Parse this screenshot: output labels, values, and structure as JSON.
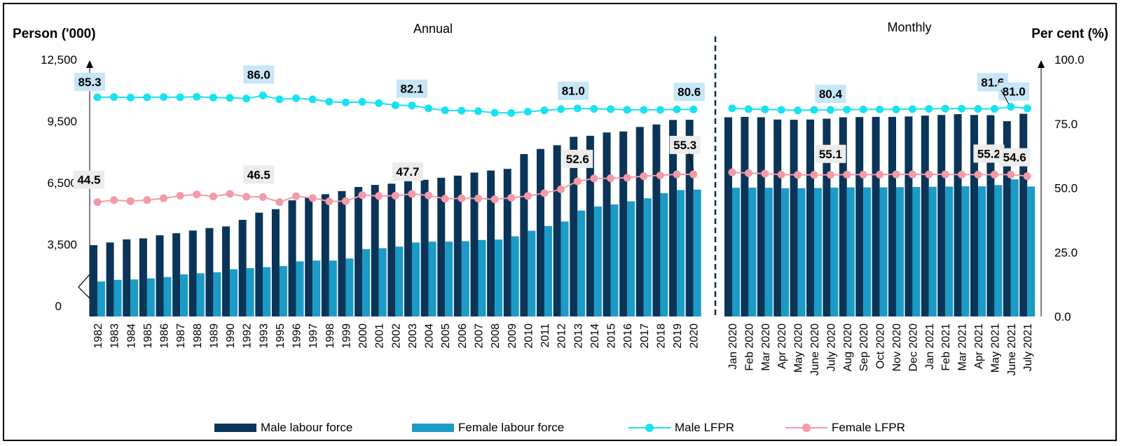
{
  "chart_data": {
    "type": "bar+line",
    "left_axis_title": "Person ('000)",
    "right_axis_title": "Per cent (%)",
    "panel_titles": {
      "annual": "Annual",
      "monthly": "Monthly"
    },
    "left_axis": {
      "ticks": [
        "0",
        "3,500",
        "6,500",
        "9,500",
        "12,500"
      ],
      "tick_values": [
        0,
        3500,
        6500,
        9500,
        12500
      ]
    },
    "right_axis": {
      "ticks": [
        "0.0",
        "25.0",
        "50.0",
        "75.0",
        "100.0"
      ],
      "tick_values": [
        0,
        25,
        50,
        75,
        100
      ]
    },
    "categories": [
      "1982",
      "1983",
      "1984",
      "1985",
      "1986",
      "1987",
      "1988",
      "1989",
      "1990",
      "1992",
      "1993",
      "1995",
      "1996",
      "1997",
      "1998",
      "1999",
      "2000",
      "2001",
      "2002",
      "2003",
      "2004",
      "2005",
      "2006",
      "2007",
      "2008",
      "2009",
      "2010",
      "2011",
      "2012",
      "2013",
      "2014",
      "2015",
      "2016",
      "2017",
      "2018",
      "2019",
      "2020",
      "Jan 2020",
      "Feb 2020",
      "Mar 2020",
      "Apr 2020",
      "May 2020",
      "June 2020",
      "July 2020",
      "Aug 2020",
      "Sep 2020",
      "Oct 2020",
      "Nov 2020",
      "Dec 2020",
      "Jan 2021",
      "Feb 2021",
      "Mar 2021",
      "Apr 2021",
      "May 2021",
      "June 2021",
      "July 2021"
    ],
    "annual_count": 37,
    "series": [
      {
        "name": "Male labour force",
        "kind": "bar",
        "axis": "left",
        "color": "#0b3558",
        "values": [
          3470,
          3600,
          3750,
          3800,
          3950,
          4050,
          4180,
          4300,
          4380,
          4700,
          5050,
          5220,
          5650,
          5780,
          5950,
          6100,
          6300,
          6400,
          6460,
          6580,
          6650,
          6750,
          6850,
          7000,
          7100,
          7180,
          7900,
          8150,
          8330,
          8740,
          8790,
          8950,
          9000,
          9220,
          9340,
          9560,
          9570,
          9690,
          9710,
          9690,
          9580,
          9570,
          9580,
          9620,
          9690,
          9700,
          9710,
          9710,
          9730,
          9770,
          9800,
          9840,
          9800,
          9790,
          9500,
          9860
        ]
      },
      {
        "name": "Female labour force",
        "kind": "bar",
        "axis": "left",
        "color": "#1b9bc7",
        "values": [
          1700,
          1780,
          1800,
          1850,
          1920,
          2050,
          2100,
          2150,
          2300,
          2350,
          2400,
          2450,
          2680,
          2720,
          2720,
          2820,
          3280,
          3320,
          3400,
          3600,
          3640,
          3640,
          3660,
          3720,
          3740,
          3900,
          4170,
          4400,
          4620,
          5150,
          5350,
          5450,
          5600,
          5750,
          6000,
          6150,
          6170,
          6260,
          6270,
          6260,
          6240,
          6240,
          6250,
          6270,
          6280,
          6280,
          6280,
          6290,
          6300,
          6310,
          6320,
          6330,
          6330,
          6390,
          6670,
          6320
        ]
      },
      {
        "name": "Male LFPR",
        "kind": "line",
        "axis": "right",
        "color": "#18e2f0",
        "values": [
          85.3,
          85.4,
          85.2,
          85.3,
          85.4,
          85.3,
          85.5,
          85.2,
          85.1,
          84.8,
          86.0,
          84.5,
          84.9,
          84.5,
          83.6,
          83.3,
          83.5,
          83.0,
          82.2,
          82.1,
          81.0,
          80.2,
          80.1,
          79.9,
          79.3,
          79.2,
          79.7,
          80.2,
          80.7,
          81.0,
          80.8,
          80.7,
          80.4,
          80.4,
          80.4,
          80.6,
          80.6,
          81.0,
          80.7,
          80.6,
          80.4,
          80.2,
          80.4,
          80.4,
          80.5,
          80.6,
          80.6,
          80.6,
          80.7,
          80.8,
          80.9,
          80.9,
          80.8,
          80.8,
          81.6,
          81.0
        ]
      },
      {
        "name": "Female LFPR",
        "kind": "line",
        "axis": "right",
        "color": "#f49aa6",
        "values": [
          44.5,
          45.3,
          44.9,
          45.3,
          46.0,
          47.0,
          47.5,
          46.7,
          47.7,
          46.6,
          46.5,
          44.5,
          46.8,
          46.1,
          44.8,
          44.9,
          47.2,
          46.9,
          47.0,
          47.7,
          47.1,
          45.8,
          46.0,
          45.9,
          45.6,
          46.2,
          46.9,
          48.0,
          49.5,
          52.6,
          53.7,
          53.8,
          54.0,
          54.6,
          54.9,
          55.3,
          55.3,
          56.1,
          55.8,
          55.6,
          55.2,
          55.1,
          55.1,
          55.1,
          55.2,
          55.2,
          55.2,
          55.3,
          55.3,
          55.3,
          55.3,
          55.2,
          55.2,
          55.2,
          55.2,
          54.6
        ]
      }
    ],
    "annotations": [
      {
        "series": "Male LFPR",
        "index": 0,
        "text": "85.3"
      },
      {
        "series": "Male LFPR",
        "index": 10,
        "text": "86.0"
      },
      {
        "series": "Male LFPR",
        "index": 19,
        "text": "82.1"
      },
      {
        "series": "Male LFPR",
        "index": 29,
        "text": "81.0"
      },
      {
        "series": "Male LFPR",
        "index": 36,
        "text": "80.6"
      },
      {
        "series": "Male LFPR",
        "index": 43,
        "text": "80.4"
      },
      {
        "series": "Male LFPR",
        "index": 54,
        "text": "81.6"
      },
      {
        "series": "Male LFPR",
        "index": 55,
        "text": "81.0"
      },
      {
        "series": "Female LFPR",
        "index": 0,
        "text": "44.5"
      },
      {
        "series": "Female LFPR",
        "index": 10,
        "text": "46.5"
      },
      {
        "series": "Female LFPR",
        "index": 19,
        "text": "47.7"
      },
      {
        "series": "Female LFPR",
        "index": 29,
        "text": "52.6"
      },
      {
        "series": "Female LFPR",
        "index": 36,
        "text": "55.3"
      },
      {
        "series": "Female LFPR",
        "index": 43,
        "text": "55.1"
      },
      {
        "series": "Female LFPR",
        "index": 53,
        "text": "55.2"
      },
      {
        "series": "Female LFPR",
        "index": 55,
        "text": "54.6"
      }
    ],
    "colors": {
      "male_label_bg": "#c7e6f7",
      "female_label_bg": "#ececec",
      "divider": "#0b2a4a"
    }
  },
  "legend": {
    "male_labour_force": "Male labour force",
    "female_labour_force": "Female labour force",
    "male_lfpr": "Male LFPR",
    "female_lfpr": "Female LFPR"
  }
}
